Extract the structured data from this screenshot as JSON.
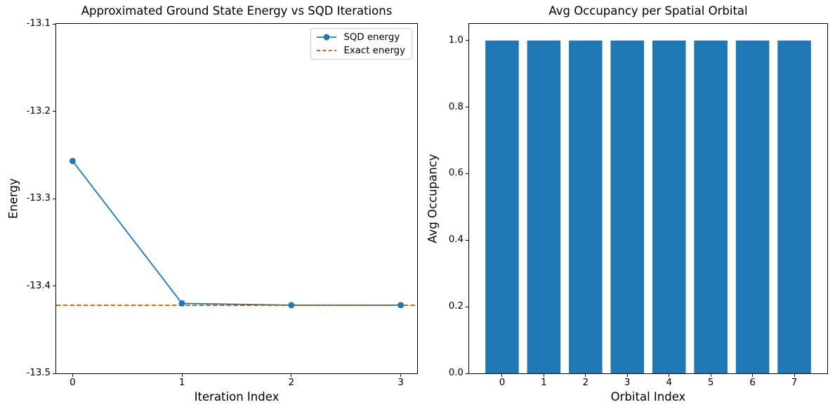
{
  "figure": {
    "background": "#ffffff",
    "text_color": "#000000"
  },
  "chart_data": [
    {
      "type": "line",
      "title": "Approximated Ground State Energy vs SQD Iterations",
      "xlabel": "Iteration Index",
      "ylabel": "Energy",
      "x": [
        0,
        1,
        2,
        3
      ],
      "series": [
        {
          "name": "SQD energy",
          "kind": "line_with_markers",
          "color": "#1f77b4",
          "marker": "circle",
          "values": [
            -13.257,
            -13.42,
            -13.422,
            -13.422
          ]
        },
        {
          "name": "Exact energy",
          "kind": "hline",
          "color": "#BF5700",
          "linestyle": "dashed",
          "value": -13.4222
        }
      ],
      "xlim": [
        -0.15,
        3.15
      ],
      "ylim": [
        -13.5,
        -13.1
      ],
      "xticks": {
        "values": [
          0,
          1,
          2,
          3
        ],
        "labels": [
          "0",
          "1",
          "2",
          "3"
        ]
      },
      "yticks": {
        "values": [
          -13.1,
          -13.2,
          -13.3,
          -13.4,
          -13.5
        ],
        "labels": [
          "-13.1",
          "-13.2",
          "-13.3",
          "-13.4",
          "-13.5"
        ]
      },
      "legend": {
        "position": "upper right",
        "entries": [
          "SQD energy",
          "Exact energy"
        ]
      },
      "grid": false
    },
    {
      "type": "bar",
      "title": "Avg Occupancy per Spatial Orbital",
      "xlabel": "Orbital Index",
      "ylabel": "Avg Occupancy",
      "categories": [
        "0",
        "1",
        "2",
        "3",
        "4",
        "5",
        "6",
        "7"
      ],
      "values": [
        1.0,
        1.0,
        1.0,
        1.0,
        1.0,
        1.0,
        1.0,
        1.0
      ],
      "bar_color": "#1f77b4",
      "bar_width": 0.8,
      "xlim": [
        -0.79,
        7.79
      ],
      "ylim": [
        0,
        1.05
      ],
      "xticks": {
        "values": [
          0,
          1,
          2,
          3,
          4,
          5,
          6,
          7
        ],
        "labels": [
          "0",
          "1",
          "2",
          "3",
          "4",
          "5",
          "6",
          "7"
        ]
      },
      "yticks": {
        "values": [
          0.0,
          0.2,
          0.4,
          0.6,
          0.8,
          1.0
        ],
        "labels": [
          "0.0",
          "0.2",
          "0.4",
          "0.6",
          "0.8",
          "1.0"
        ]
      },
      "grid": false
    }
  ]
}
